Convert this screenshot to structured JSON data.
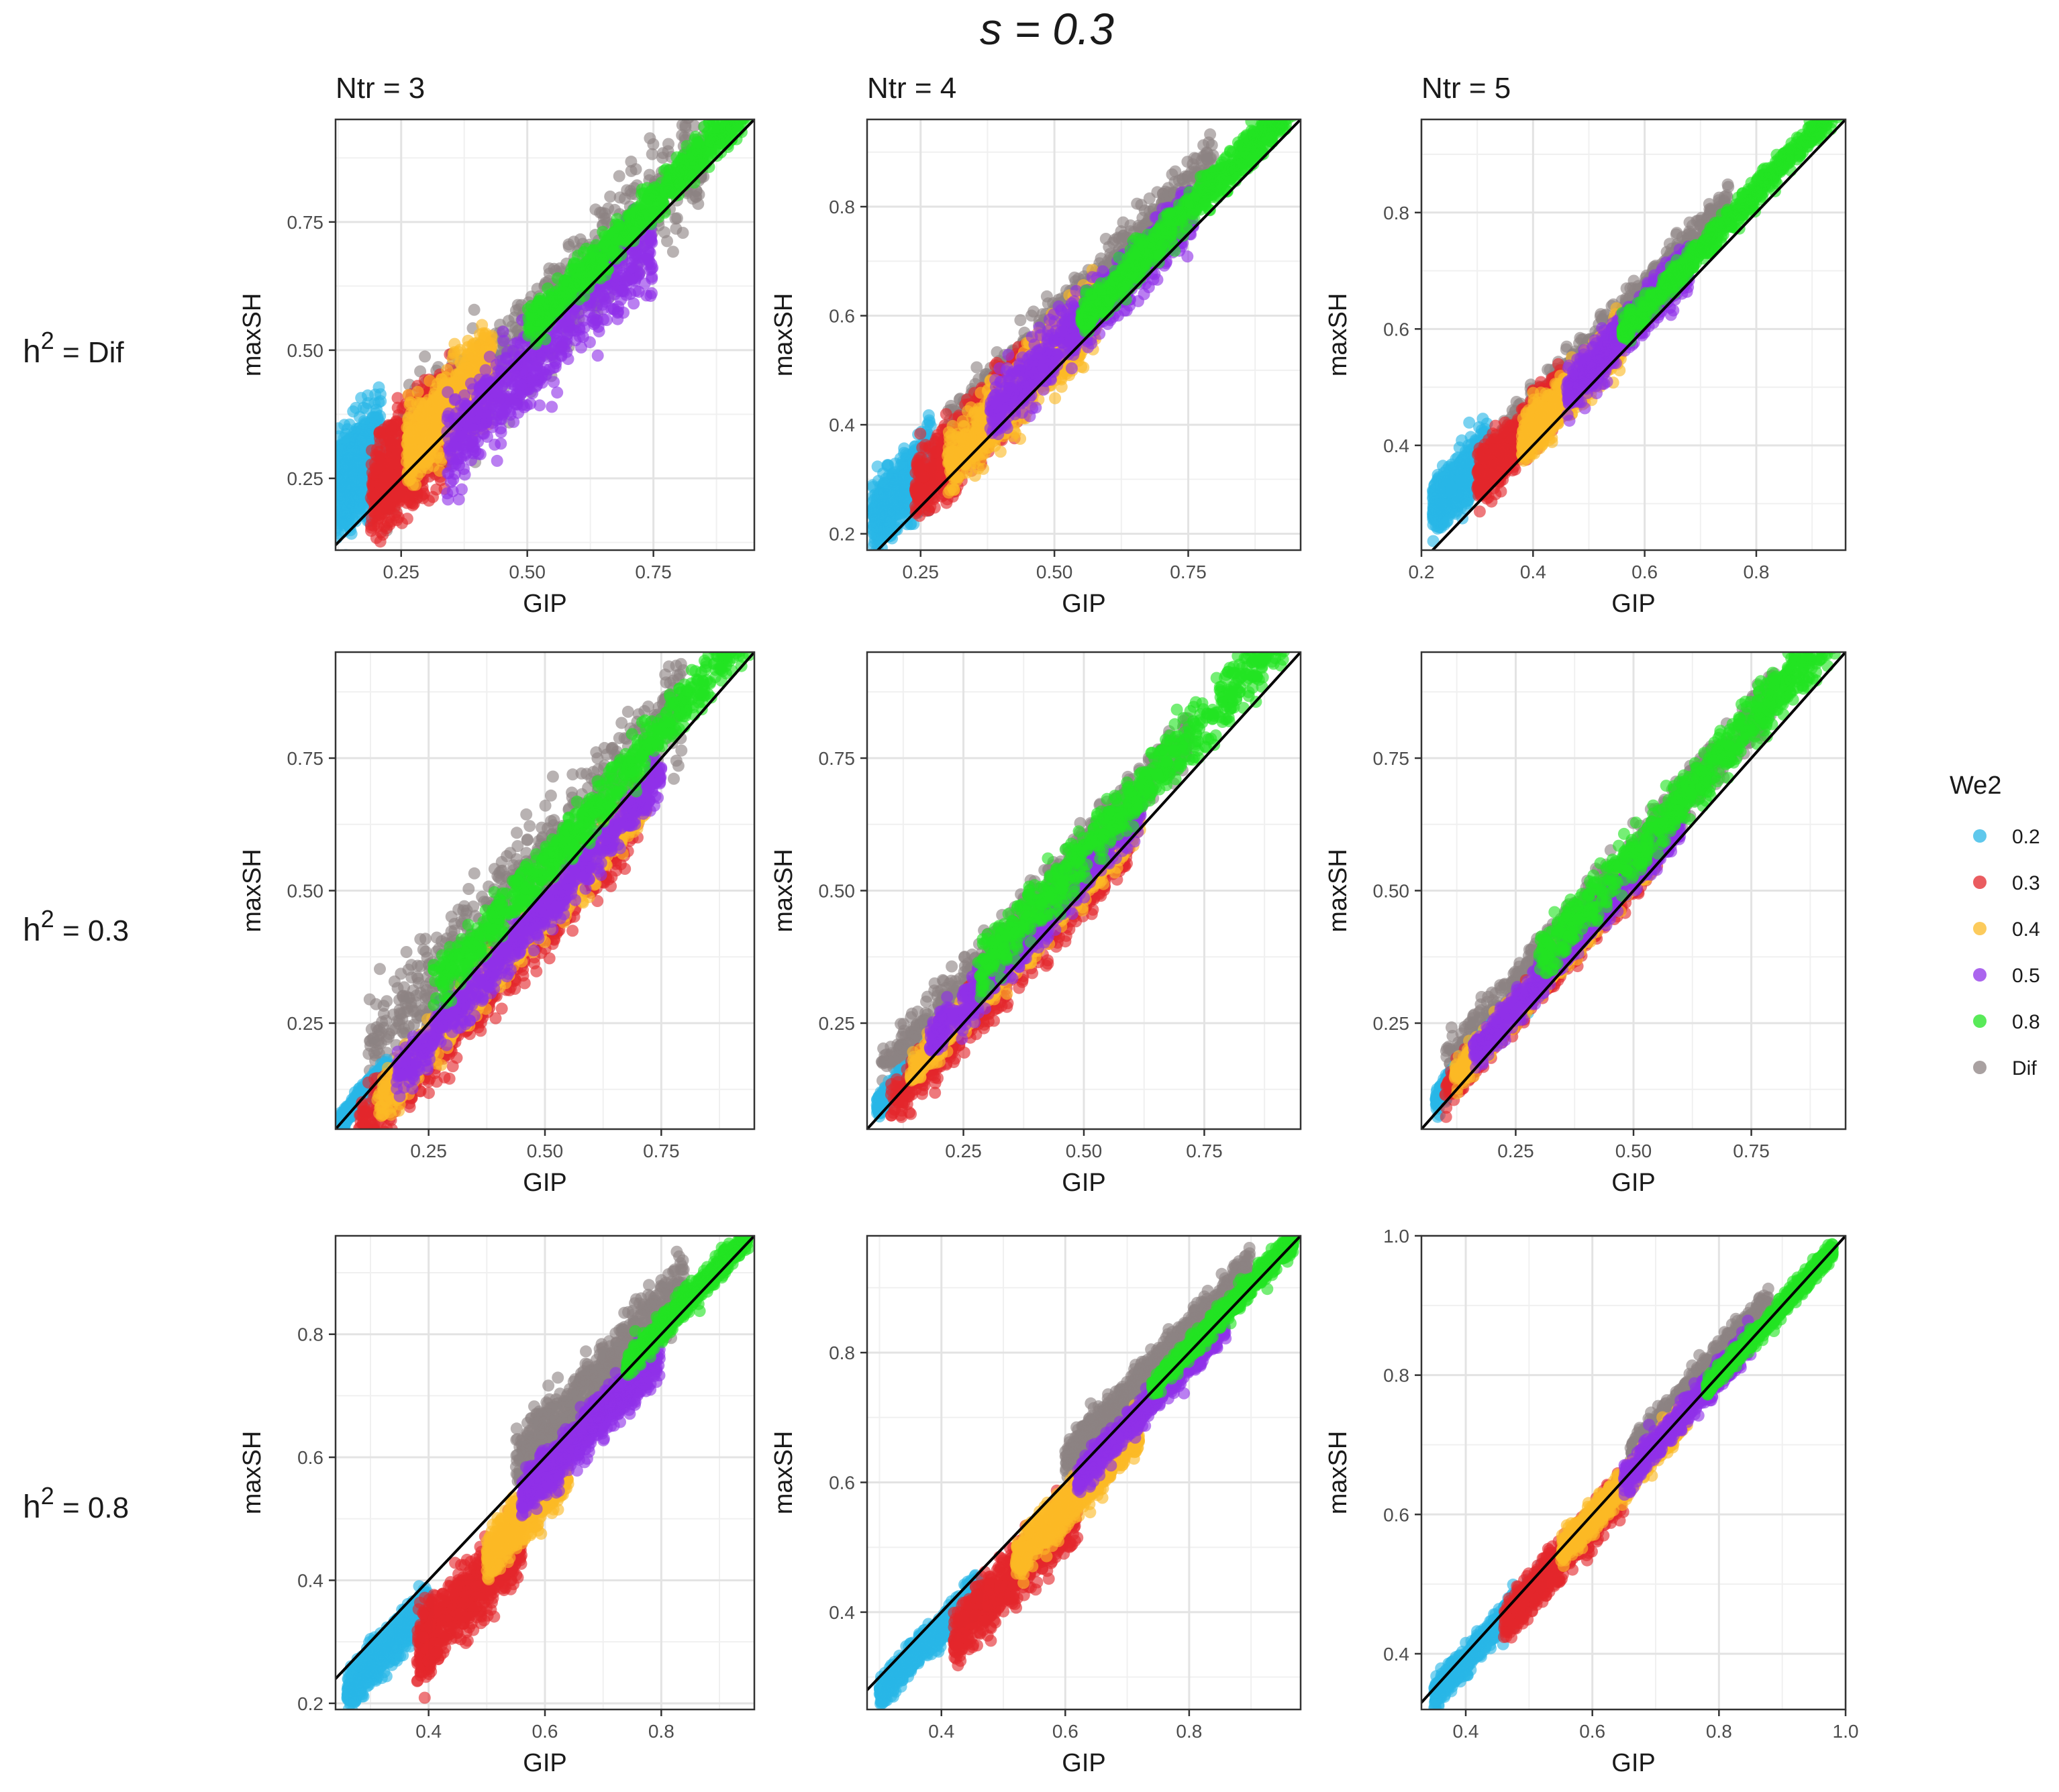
{
  "chart_data": {
    "type": "scatter",
    "title": "s = 0.3",
    "xlabel": "GIP",
    "ylabel": "maxSH",
    "column_titles": [
      "Ntr = 3",
      "Ntr = 4",
      "Ntr = 5"
    ],
    "row_labels": [
      {
        "base": "h",
        "sup": "2",
        "rest": " = Dif"
      },
      {
        "base": "h",
        "sup": "2",
        "rest": " = 0.3"
      },
      {
        "base": "h",
        "sup": "2",
        "rest": " = 0.8"
      }
    ],
    "legend": {
      "title": "We2",
      "placement": "right",
      "entries": [
        {
          "label": "0.2",
          "color": "#29b6e6"
        },
        {
          "label": "0.3",
          "color": "#e3262b"
        },
        {
          "label": "0.4",
          "color": "#fbb925"
        },
        {
          "label": "0.5",
          "color": "#8f31e8"
        },
        {
          "label": "0.8",
          "color": "#22e322"
        },
        {
          "label": "Dif",
          "color": "#8c8282"
        }
      ]
    },
    "reference_line": "y = x",
    "panels": [
      {
        "row": 0,
        "col": 0,
        "xlim": [
          0.12,
          0.95
        ],
        "ylim": [
          0.11,
          0.95
        ],
        "xticks": [
          0.25,
          0.5,
          0.75
        ],
        "xtick_labels": [
          "0.25",
          "0.50",
          "0.75"
        ],
        "yticks": [
          0.25,
          0.5,
          0.75
        ],
        "ytick_labels": [
          "0.25",
          "0.50",
          "0.75"
        ],
        "series": [
          {
            "name": "Dif",
            "x_range": [
              0.22,
              0.85
            ],
            "band": [
              -0.13,
              0.2
            ]
          },
          {
            "name": "0.2",
            "x_range": [
              0.12,
              0.21
            ],
            "band": [
              -0.05,
              0.25
            ]
          },
          {
            "name": "0.3",
            "x_range": [
              0.19,
              0.35
            ],
            "band": [
              -0.13,
              0.2
            ]
          },
          {
            "name": "0.4",
            "x_range": [
              0.26,
              0.43
            ],
            "band": [
              -0.08,
              0.17
            ]
          },
          {
            "name": "0.5",
            "x_range": [
              0.34,
              0.75
            ],
            "band": [
              -0.17,
              0.1
            ]
          },
          {
            "name": "0.8",
            "x_range": [
              0.5,
              0.94
            ],
            "band": [
              -0.02,
              0.1
            ]
          }
        ]
      },
      {
        "row": 0,
        "col": 1,
        "xlim": [
          0.15,
          0.96
        ],
        "ylim": [
          0.17,
          0.96
        ],
        "xticks": [
          0.25,
          0.5,
          0.75
        ],
        "xtick_labels": [
          "0.25",
          "0.50",
          "0.75"
        ],
        "yticks": [
          0.2,
          0.4,
          0.6,
          0.8
        ],
        "ytick_labels": [
          "0.2",
          "0.4",
          "0.6",
          "0.8"
        ],
        "series": [
          {
            "name": "Dif",
            "x_range": [
              0.3,
              0.8
            ],
            "band": [
              0.01,
              0.16
            ]
          },
          {
            "name": "0.2",
            "x_range": [
              0.16,
              0.27
            ],
            "band": [
              -0.03,
              0.16
            ]
          },
          {
            "name": "0.3",
            "x_range": [
              0.24,
              0.45
            ],
            "band": [
              -0.06,
              0.14
            ]
          },
          {
            "name": "0.4",
            "x_range": [
              0.3,
              0.58
            ],
            "band": [
              -0.07,
              0.13
            ]
          },
          {
            "name": "0.5",
            "x_range": [
              0.38,
              0.76
            ],
            "band": [
              -0.05,
              0.12
            ]
          },
          {
            "name": "0.8",
            "x_range": [
              0.55,
              0.95
            ],
            "band": [
              -0.01,
              0.1
            ]
          }
        ]
      },
      {
        "row": 0,
        "col": 2,
        "xlim": [
          0.2,
          0.96
        ],
        "ylim": [
          0.22,
          0.96
        ],
        "xticks": [
          0.2,
          0.4,
          0.6,
          0.8
        ],
        "xtick_labels": [
          "0.2",
          "0.4",
          "0.6",
          "0.8"
        ],
        "yticks": [
          0.4,
          0.6,
          0.8
        ],
        "ytick_labels": [
          "0.4",
          "0.6",
          "0.8"
        ],
        "series": [
          {
            "name": "Dif",
            "x_range": [
              0.3,
              0.75
            ],
            "band": [
              0.01,
              0.12
            ]
          },
          {
            "name": "0.2",
            "x_range": [
              0.22,
              0.32
            ],
            "band": [
              0.0,
              0.14
            ]
          },
          {
            "name": "0.3",
            "x_range": [
              0.3,
              0.45
            ],
            "band": [
              -0.03,
              0.11
            ]
          },
          {
            "name": "0.4",
            "x_range": [
              0.38,
              0.56
            ],
            "band": [
              -0.04,
              0.09
            ]
          },
          {
            "name": "0.5",
            "x_range": [
              0.46,
              0.68
            ],
            "band": [
              -0.03,
              0.09
            ]
          },
          {
            "name": "0.8",
            "x_range": [
              0.56,
              0.95
            ],
            "band": [
              0.0,
              0.07
            ]
          }
        ]
      },
      {
        "row": 1,
        "col": 0,
        "xlim": [
          0.05,
          0.95
        ],
        "ylim": [
          0.05,
          0.95
        ],
        "xticks": [
          0.25,
          0.5,
          0.75
        ],
        "xtick_labels": [
          "0.25",
          "0.50",
          "0.75"
        ],
        "yticks": [
          0.25,
          0.5,
          0.75
        ],
        "ytick_labels": [
          "0.25",
          "0.50",
          "0.75"
        ],
        "series": [
          {
            "name": "Dif",
            "x_range": [
              0.12,
              0.8
            ],
            "band": [
              -0.1,
              0.22
            ]
          },
          {
            "name": "0.2",
            "x_range": [
              0.06,
              0.16
            ],
            "band": [
              -0.02,
              0.03
            ]
          },
          {
            "name": "0.3",
            "x_range": [
              0.1,
              0.7
            ],
            "band": [
              -0.16,
              0.03
            ]
          },
          {
            "name": "0.4",
            "x_range": [
              0.14,
              0.72
            ],
            "band": [
              -0.12,
              0.03
            ]
          },
          {
            "name": "0.5",
            "x_range": [
              0.18,
              0.75
            ],
            "band": [
              -0.1,
              0.03
            ]
          },
          {
            "name": "0.8",
            "x_range": [
              0.26,
              0.94
            ],
            "band": [
              -0.02,
              0.12
            ]
          }
        ]
      },
      {
        "row": 1,
        "col": 1,
        "xlim": [
          0.05,
          0.95
        ],
        "ylim": [
          0.05,
          0.95
        ],
        "xticks": [
          0.25,
          0.5,
          0.75
        ],
        "xtick_labels": [
          "0.25",
          "0.50",
          "0.75"
        ],
        "yticks": [
          0.25,
          0.5,
          0.75
        ],
        "ytick_labels": [
          "0.25",
          "0.50",
          "0.75"
        ],
        "series": [
          {
            "name": "Dif",
            "x_range": [
              0.08,
              0.72
            ],
            "band": [
              0.0,
              0.15
            ]
          },
          {
            "name": "0.2",
            "x_range": [
              0.07,
              0.2
            ],
            "band": [
              -0.01,
              0.05
            ]
          },
          {
            "name": "0.3",
            "x_range": [
              0.1,
              0.6
            ],
            "band": [
              -0.08,
              0.07
            ]
          },
          {
            "name": "0.4",
            "x_range": [
              0.14,
              0.62
            ],
            "band": [
              -0.04,
              0.07
            ]
          },
          {
            "name": "0.5",
            "x_range": [
              0.18,
              0.62
            ],
            "band": [
              -0.03,
              0.09
            ]
          },
          {
            "name": "0.8",
            "x_range": [
              0.28,
              0.95
            ],
            "band": [
              -0.01,
              0.15
            ]
          }
        ]
      },
      {
        "row": 1,
        "col": 2,
        "xlim": [
          0.05,
          0.95
        ],
        "ylim": [
          0.05,
          0.95
        ],
        "xticks": [
          0.25,
          0.5,
          0.75
        ],
        "xtick_labels": [
          "0.25",
          "0.50",
          "0.75"
        ],
        "yticks": [
          0.25,
          0.5,
          0.75
        ],
        "ytick_labels": [
          "0.25",
          "0.50",
          "0.75"
        ],
        "series": [
          {
            "name": "Dif",
            "x_range": [
              0.1,
              0.8
            ],
            "band": [
              0.0,
              0.14
            ]
          },
          {
            "name": "0.2",
            "x_range": [
              0.08,
              0.28
            ],
            "band": [
              -0.01,
              0.06
            ]
          },
          {
            "name": "0.3",
            "x_range": [
              0.1,
              0.55
            ],
            "band": [
              -0.03,
              0.07
            ]
          },
          {
            "name": "0.4",
            "x_range": [
              0.12,
              0.55
            ],
            "band": [
              -0.02,
              0.07
            ]
          },
          {
            "name": "0.5",
            "x_range": [
              0.16,
              0.6
            ],
            "band": [
              -0.02,
              0.08
            ]
          },
          {
            "name": "0.8",
            "x_range": [
              0.3,
              0.95
            ],
            "band": [
              -0.01,
              0.14
            ]
          }
        ]
      },
      {
        "row": 2,
        "col": 0,
        "xlim": [
          0.24,
          0.96
        ],
        "ylim": [
          0.19,
          0.96
        ],
        "xticks": [
          0.4,
          0.6,
          0.8
        ],
        "xtick_labels": [
          "0.4",
          "0.6",
          "0.8"
        ],
        "yticks": [
          0.2,
          0.4,
          0.6,
          0.8
        ],
        "ytick_labels": [
          "0.2",
          "0.4",
          "0.6",
          "0.8"
        ],
        "series": [
          {
            "name": "Dif",
            "x_range": [
              0.55,
              0.84
            ],
            "band": [
              -0.04,
              0.12
            ]
          },
          {
            "name": "0.2",
            "x_range": [
              0.26,
              0.4
            ],
            "band": [
              -0.09,
              0.01
            ]
          },
          {
            "name": "0.3",
            "x_range": [
              0.38,
              0.56
            ],
            "band": [
              -0.19,
              0.0
            ]
          },
          {
            "name": "0.4",
            "x_range": [
              0.5,
              0.64
            ],
            "band": [
              -0.12,
              0.0
            ]
          },
          {
            "name": "0.5",
            "x_range": [
              0.56,
              0.8
            ],
            "band": [
              -0.09,
              0.03
            ]
          },
          {
            "name": "0.8",
            "x_range": [
              0.74,
              0.95
            ],
            "band": [
              -0.02,
              0.04
            ]
          }
        ]
      },
      {
        "row": 2,
        "col": 1,
        "xlim": [
          0.28,
          0.98
        ],
        "ylim": [
          0.25,
          0.98
        ],
        "xticks": [
          0.4,
          0.6,
          0.8
        ],
        "xtick_labels": [
          "0.4",
          "0.6",
          "0.8"
        ],
        "yticks": [
          0.4,
          0.6,
          0.8
        ],
        "ytick_labels": [
          "0.4",
          "0.6",
          "0.8"
        ],
        "series": [
          {
            "name": "Dif",
            "x_range": [
              0.6,
              0.9
            ],
            "band": [
              -0.01,
              0.08
            ]
          },
          {
            "name": "0.2",
            "x_range": [
              0.3,
              0.46
            ],
            "band": [
              -0.06,
              0.01
            ]
          },
          {
            "name": "0.3",
            "x_range": [
              0.42,
              0.62
            ],
            "band": [
              -0.13,
              0.01
            ]
          },
          {
            "name": "0.4",
            "x_range": [
              0.52,
              0.72
            ],
            "band": [
              -0.09,
              0.01
            ]
          },
          {
            "name": "0.5",
            "x_range": [
              0.62,
              0.86
            ],
            "band": [
              -0.05,
              0.02
            ]
          },
          {
            "name": "0.8",
            "x_range": [
              0.74,
              0.97
            ],
            "band": [
              -0.02,
              0.03
            ]
          }
        ]
      },
      {
        "row": 2,
        "col": 2,
        "xlim": [
          0.33,
          1.0
        ],
        "ylim": [
          0.32,
          1.0
        ],
        "xticks": [
          0.4,
          0.6,
          0.8,
          1.0
        ],
        "xtick_labels": [
          "0.4",
          "0.6",
          "0.8",
          "1.0"
        ],
        "yticks": [
          0.4,
          0.6,
          0.8,
          1.0
        ],
        "ytick_labels": [
          "0.4",
          "0.6",
          "0.8",
          "1.0"
        ],
        "series": [
          {
            "name": "Dif",
            "x_range": [
              0.66,
              0.88
            ],
            "band": [
              -0.01,
              0.06
            ]
          },
          {
            "name": "0.2",
            "x_range": [
              0.35,
              0.52
            ],
            "band": [
              -0.04,
              0.02
            ]
          },
          {
            "name": "0.3",
            "x_range": [
              0.46,
              0.65
            ],
            "band": [
              -0.06,
              0.03
            ]
          },
          {
            "name": "0.4",
            "x_range": [
              0.55,
              0.75
            ],
            "band": [
              -0.04,
              0.03
            ]
          },
          {
            "name": "0.5",
            "x_range": [
              0.65,
              0.85
            ],
            "band": [
              -0.03,
              0.03
            ]
          },
          {
            "name": "0.8",
            "x_range": [
              0.78,
              0.98
            ],
            "band": [
              -0.02,
              0.02
            ]
          }
        ]
      }
    ]
  }
}
